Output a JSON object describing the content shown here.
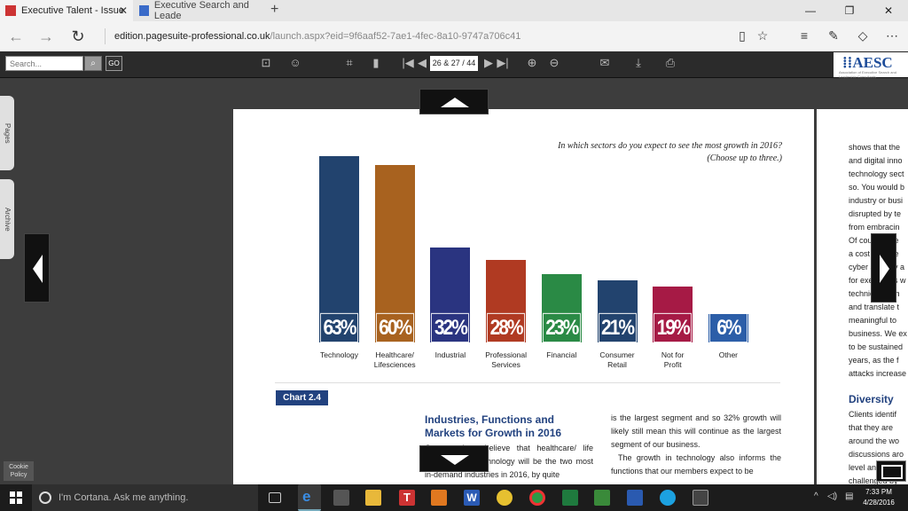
{
  "browser": {
    "tabs": [
      {
        "title": "Executive Talent - Issue",
        "active": true
      },
      {
        "title": "Executive Search and Leade",
        "active": false
      }
    ],
    "url_domain": "edition.pagesuite-professional.co.uk",
    "url_path": "/launch.aspx?eid=9f6aaf52-7ae1-4fec-8a10-9747a706c41"
  },
  "reader_toolbar": {
    "search_placeholder": "Search...",
    "go_label": "GO",
    "page_indicator": "26 & 27 / 44",
    "logo_text": "AESC",
    "logo_subtext": "Association of Executive Search and Leadership Consultants"
  },
  "side_tabs": {
    "pages": "Pages",
    "archive": "Archive"
  },
  "chart_data": {
    "type": "bar",
    "title": "In which sectors do you expect to see the most growth in 2016?",
    "subtitle": "(Choose up to three.)",
    "categories": [
      "Technology",
      "Healthcare/ Lifesciences",
      "Industrial",
      "Professional Services",
      "Financial",
      "Consumer Retail",
      "Not for Profit",
      "Other"
    ],
    "category_lines": [
      [
        "Technology"
      ],
      [
        "Healthcare/",
        "Lifesciences"
      ],
      [
        "Industrial"
      ],
      [
        "Professional",
        "Services"
      ],
      [
        "Financial"
      ],
      [
        "Consumer",
        "Retail"
      ],
      [
        "Not for",
        "Profit"
      ],
      [
        "Other"
      ]
    ],
    "values": [
      63,
      60,
      32,
      28,
      23,
      21,
      19,
      6
    ],
    "value_labels": [
      "63%",
      "60%",
      "32%",
      "28%",
      "23%",
      "21%",
      "19%",
      "6%"
    ],
    "colors": [
      "#22436e",
      "#a8621f",
      "#2a3480",
      "#b03a22",
      "#2a8a45",
      "#22436e",
      "#a61a45",
      "#2c5ea8"
    ],
    "ylim": [
      0,
      66
    ]
  },
  "article": {
    "chart_tag": "Chart 2.4",
    "heading": "Industries, Functions and Markets for Growth in 2016",
    "col1": "Our members believe that healthcare/ life sciences and technology will be the two most in-demand industries in 2016, by quite",
    "col2": "is the largest segment and so 32% growth will likely still mean this will continue as the largest segment of our business.",
    "col2b": "The growth in technology also informs the functions that our members expect to be"
  },
  "right_page": {
    "lines": [
      "shows that the",
      "and digital inno",
      "technology sect",
      "so. You would b",
      "industry or busi",
      "disrupted by te",
      "from embracin",
      "Of course, the",
      "a cost and the",
      "cyber security a",
      "for executives w",
      "technical, high",
      "and translate t",
      "meaningful to",
      "business. We ex",
      "to be sustained",
      "years, as the f",
      "attacks increase"
    ],
    "heading": "Diversity",
    "lines2": [
      "Clients identif",
      "that they are",
      "around the wo",
      "discussions aro",
      "level and beyo",
      "challenged by"
    ]
  },
  "cookie": "Cookie Policy",
  "taskbar": {
    "cortana": "I'm Cortana. Ask me anything.",
    "time": "7:33 PM",
    "date": "4/28/2016"
  }
}
